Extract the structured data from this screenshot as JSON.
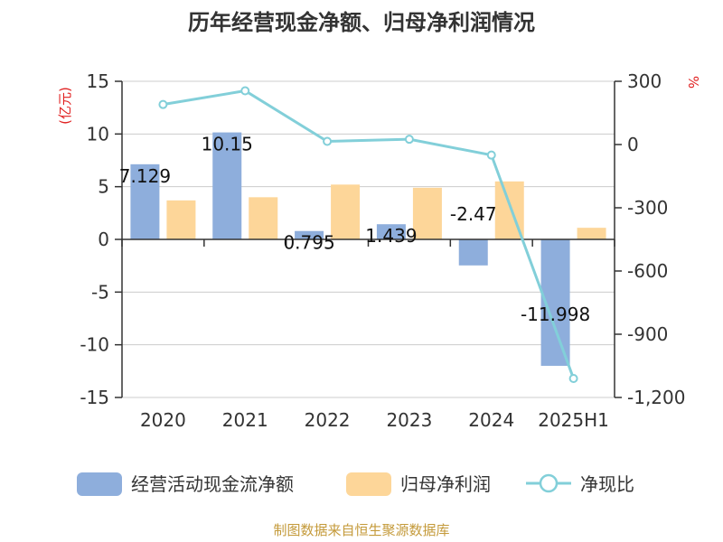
{
  "chart_data": {
    "type": "bar",
    "title": "历年经营现金净额、归母净利润情况",
    "categories": [
      "2020",
      "2021",
      "2022",
      "2023",
      "2024",
      "2025H1"
    ],
    "left_axis": {
      "unit_label": "(亿元)",
      "unit_color": "#e02020",
      "ylim": [
        -15,
        15
      ],
      "ticks": [
        15,
        10,
        5,
        0,
        -5,
        -10,
        -15
      ],
      "tick_labels": [
        "15",
        "10",
        "5",
        "0",
        "-5",
        "-10",
        "-15"
      ]
    },
    "right_axis": {
      "unit_label": "%",
      "unit_color": "#e02020",
      "ylim": [
        -1200,
        300
      ],
      "ticks": [
        300,
        0,
        -300,
        -600,
        -900,
        -1200
      ],
      "tick_labels": [
        "300",
        "0",
        "-300",
        "-600",
        "-900",
        "-1,200"
      ]
    },
    "series": [
      {
        "name": "经营活动现金流净额",
        "kind": "bar",
        "axis": "left",
        "color": "#8eaedc",
        "values": [
          7.129,
          10.15,
          0.795,
          1.439,
          -2.47,
          -11.998
        ],
        "data_labels": [
          "7.129",
          "10.15",
          "0.795",
          "1.439",
          "-2.47",
          "-11.998"
        ]
      },
      {
        "name": "归母净利润",
        "kind": "bar",
        "axis": "left",
        "color": "#fdd699",
        "values": [
          3.7,
          4.0,
          5.2,
          4.9,
          5.5,
          1.1
        ]
      },
      {
        "name": "净现比",
        "kind": "line",
        "axis": "right",
        "color": "#82cfd9",
        "values": [
          190,
          255,
          15,
          25,
          -50,
          -1110
        ]
      }
    ],
    "grid": true,
    "legend_position": "bottom"
  },
  "source_text": "制图数据来自恒生聚源数据库",
  "source_color": "#c49a3a"
}
